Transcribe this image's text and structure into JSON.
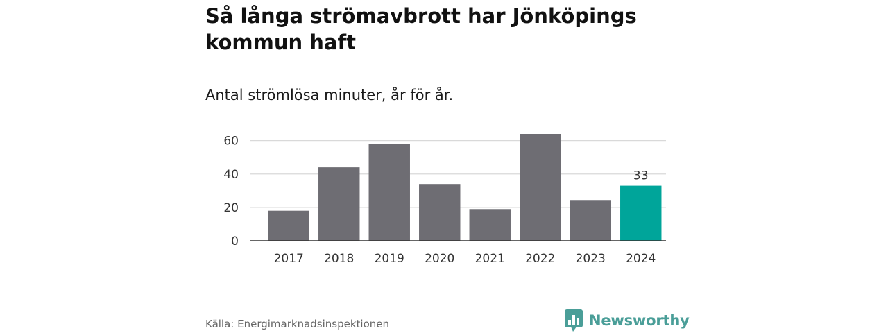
{
  "header": {
    "title": "Så långa strömavbrott har Jönköpings kommun haft",
    "subtitle": "Antal strömlösa minuter, år för år."
  },
  "chart_data": {
    "type": "bar",
    "title": "Så långa strömavbrott har Jönköpings kommun haft",
    "subtitle": "Antal strömlösa minuter, år för år.",
    "categories": [
      "2017",
      "2018",
      "2019",
      "2020",
      "2021",
      "2022",
      "2023",
      "2024"
    ],
    "values": [
      18,
      44,
      58,
      34,
      19,
      64,
      24,
      33
    ],
    "highlight_index": 7,
    "data_labels": [
      {
        "index": 7,
        "text": "33"
      }
    ],
    "xlabel": "",
    "ylabel": "",
    "ylim": [
      0,
      64
    ],
    "yticks": [
      0,
      20,
      40,
      60
    ],
    "grid": true,
    "colors": {
      "bar": "#6e6d73",
      "highlight": "#00a59a",
      "grid": "#d9d9d9",
      "axis": "#333333"
    }
  },
  "footer": {
    "source": "Källa: Energimarknadsinspektionen",
    "brand_name": "Newsworthy",
    "brand_color": "#4a9e98"
  }
}
